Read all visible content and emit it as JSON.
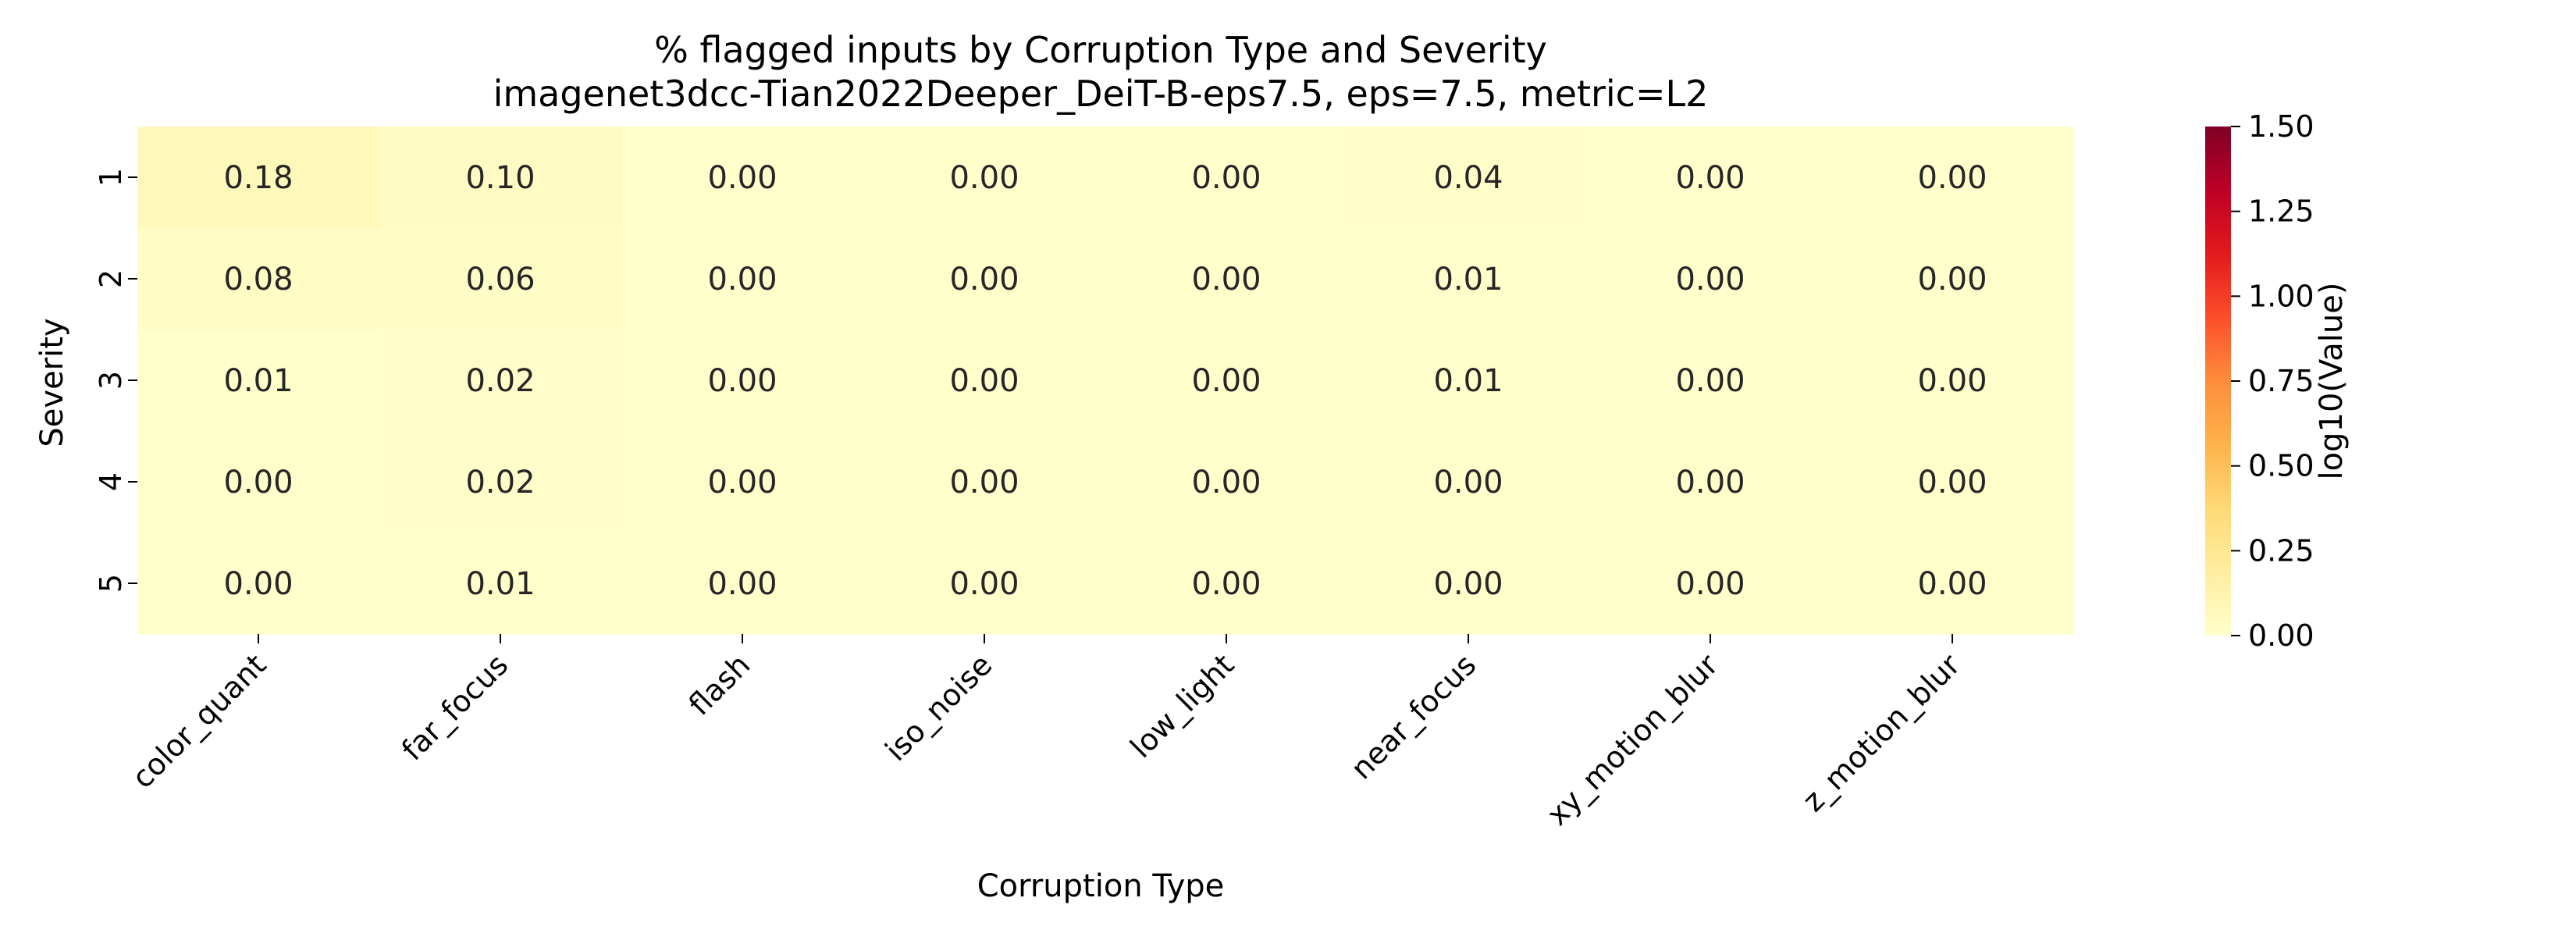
{
  "chart_data": {
    "type": "heatmap",
    "title": "% flagged inputs by Corruption Type and Severity",
    "subtitle": "imagenet3dcc-Tian2022Deeper_DeiT-B-eps7.5, eps=7.5, metric=L2",
    "xlabel": "Corruption Type",
    "ylabel": "Severity",
    "x_categories": [
      "color_quant",
      "far_focus",
      "flash",
      "iso_noise",
      "low_light",
      "near_focus",
      "xy_motion_blur",
      "z_motion_blur"
    ],
    "y_categories": [
      "1",
      "2",
      "3",
      "4",
      "5"
    ],
    "values": [
      [
        0.18,
        0.1,
        0.0,
        0.0,
        0.0,
        0.04,
        0.0,
        0.0
      ],
      [
        0.08,
        0.06,
        0.0,
        0.0,
        0.0,
        0.01,
        0.0,
        0.0
      ],
      [
        0.01,
        0.02,
        0.0,
        0.0,
        0.0,
        0.01,
        0.0,
        0.0
      ],
      [
        0.0,
        0.02,
        0.0,
        0.0,
        0.0,
        0.0,
        0.0,
        0.0
      ],
      [
        0.0,
        0.01,
        0.0,
        0.0,
        0.0,
        0.0,
        0.0,
        0.0
      ]
    ],
    "colorbar": {
      "label": "log10(Value)",
      "ticks": [
        "0.00",
        "0.25",
        "0.50",
        "0.75",
        "1.00",
        "1.25",
        "1.50"
      ],
      "range": [
        0,
        1.5
      ],
      "colormap": "YlOrRd"
    }
  }
}
